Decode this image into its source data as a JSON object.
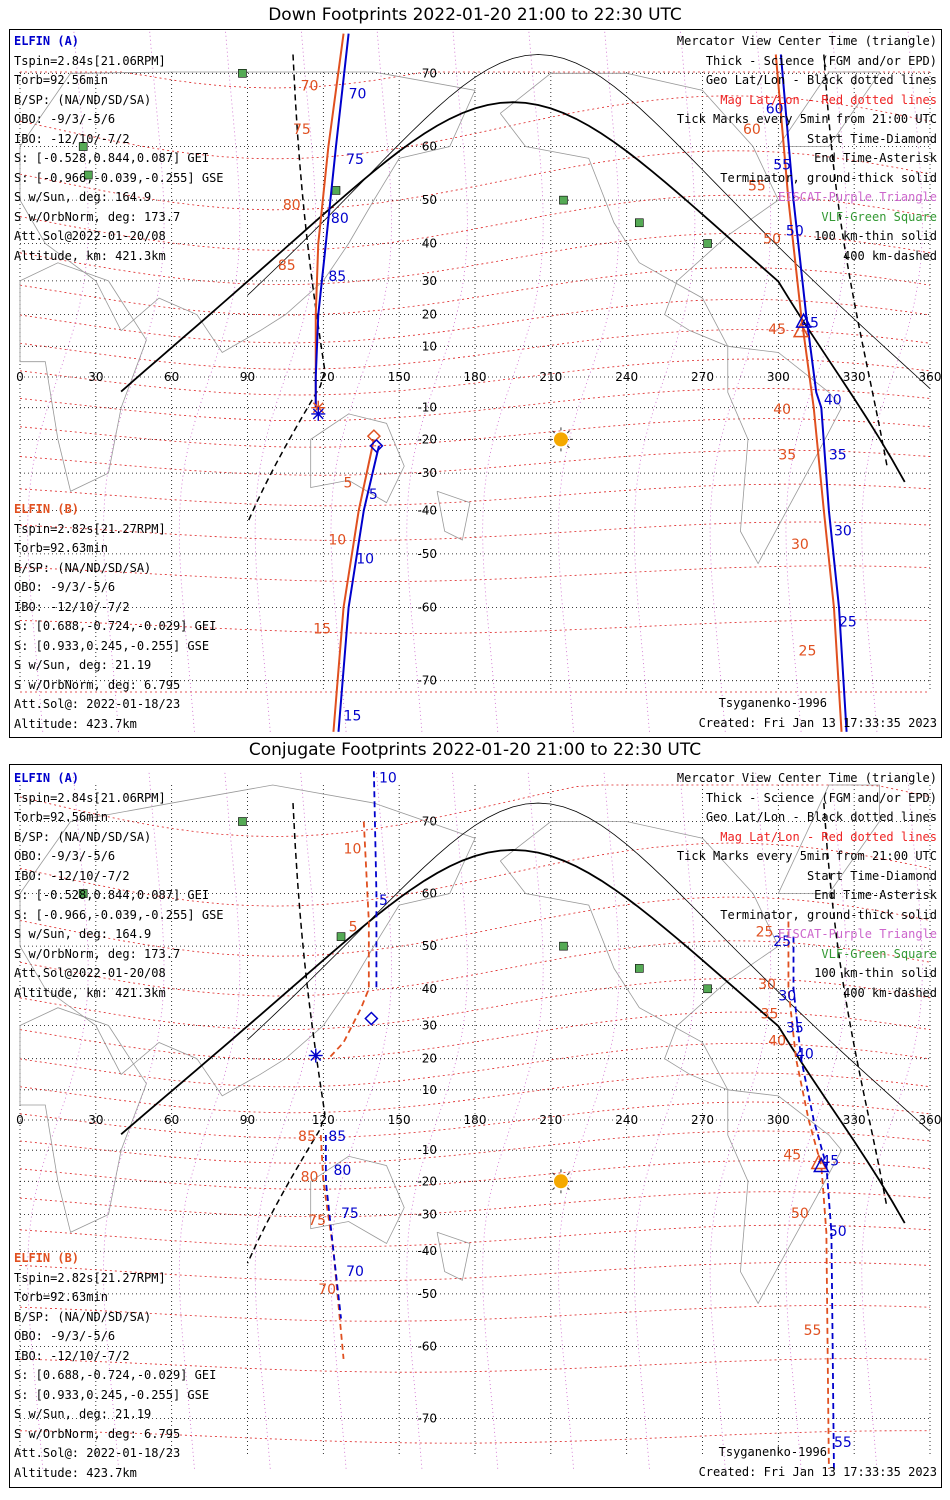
{
  "panels": [
    {
      "title": "Down Footprints 2022-01-20 21:00 to 22:30 UTC",
      "sat_a": {
        "name": "ELFIN (A)",
        "lines": [
          "Tspin=2.84s[21.06RPM]",
          "Torb=92.56min",
          "B/SP: (NA/ND/SD/SA)",
          "OBO: -9/3/-5/6",
          "IBO: -12/10/-7/2",
          "S: [-0.528,0.844,0.087] GEI",
          "S: [-0.966,-0.039,-0.255] GSE",
          "S w/Sun, deg: 164.9",
          "S w/OrbNorm, deg: 173.7",
          "Att.Sol@2022-01-20/08",
          "Altitude, km: 421.3km"
        ]
      },
      "sat_b": {
        "name": "ELFIN (B)",
        "lines": [
          "Tspin=2.82s[21.27RPM]",
          "Torb=92.63min",
          "B/SP: (NA/ND/SD/SA)",
          "OBO: -9/3/-5/6",
          "IBO: -12/10/-7/2",
          "S: [0.688,-0.724,-0.029] GEI",
          "S: [0.933,0.245,-0.255] GSE",
          "S w/Sun, deg: 21.19",
          "S w/OrbNorm, deg: 6.795",
          "Att.Sol@: 2022-01-18/23",
          "Altitude: 423.7km"
        ]
      },
      "labels": {
        "a_track_top": [
          "70",
          "75",
          "80",
          "85"
        ],
        "b_track_top": [
          "70",
          "75",
          "80",
          "85"
        ],
        "a_track_b": [
          "5",
          "10",
          "15"
        ],
        "b_track_b": [
          "5",
          "10",
          "15"
        ],
        "a_right": [
          "60",
          "55",
          "50",
          "45",
          "40",
          "35",
          "30",
          "25"
        ],
        "b_right": [
          "60",
          "55",
          "50",
          "45",
          "40",
          "35",
          "30",
          "25"
        ]
      },
      "footer_left": "Tsyganenko-1996",
      "footer_right": "Created: Fri Jan 13 17:33:35 2023"
    },
    {
      "title": "Conjugate Footprints 2022-01-20 21:00 to 22:30 UTC",
      "sat_a": {
        "name": "ELFIN (A)",
        "lines": [
          "Tspin=2.84s[21.06RPM]",
          "Torb=92.56min",
          "B/SP: (NA/ND/SD/SA)",
          "OBO: -9/3/-5/6",
          "IBO: -12/10/-7/2",
          "S: [-0.528,0.844,0.087] GEI",
          "S: [-0.966,-0.039,-0.255] GSE",
          "S w/Sun, deg: 164.9",
          "S w/OrbNorm, deg: 173.7",
          "Att.Sol@2022-01-20/08",
          "Altitude, km: 421.3km"
        ]
      },
      "sat_b": {
        "name": "ELFIN (B)",
        "lines": [
          "Tspin=2.82s[21.27RPM]",
          "Torb=92.63min",
          "B/SP: (NA/ND/SD/SA)",
          "OBO: -9/3/-5/6",
          "IBO: -12/10/-7/2",
          "S: [0.688,-0.724,-0.029] GEI",
          "S: [0.933,0.245,-0.255] GSE",
          "S w/Sun, deg: 21.19",
          "S w/OrbNorm, deg: 6.795",
          "Att.Sol@: 2022-01-18/23",
          "Altitude: 423.7km"
        ]
      },
      "labels": {
        "a_left": [
          "10",
          "5",
          "85",
          "80",
          "75",
          "70"
        ],
        "b_left": [
          "10",
          "5",
          "85",
          "80",
          "75",
          "70"
        ],
        "a_right": [
          "25",
          "30",
          "35",
          "40",
          "45",
          "50",
          "55"
        ],
        "b_right": [
          "25",
          "30",
          "35",
          "40",
          "45",
          "50",
          "55"
        ]
      },
      "footer_left": "Tsyganenko-1996",
      "footer_right": "Created: Fri Jan 13 17:33:35 2023"
    }
  ],
  "legend": [
    "Mercator View Center Time (triangle)",
    "Thick - Science (FGM and/or EPD)",
    "Geo Lat/Lon - Black dotted lines",
    "Mag Lat/Lon - Red dotted lines",
    "Tick Marks every 5min from 21:00 UTC",
    "Start Time-Diamond",
    "End Time-Asterisk",
    "Terminator, ground-thick solid",
    "EISCAT-Purple Triangle",
    "VLF-Green Square",
    "100 km-thin solid",
    "400 km-dashed"
  ],
  "lon_ticks": [
    "0",
    "30",
    "60",
    "90",
    "120",
    "150",
    "180",
    "210",
    "240",
    "270",
    "300",
    "330",
    "360"
  ],
  "lat_ticks": [
    "70",
    "60",
    "50",
    "40",
    "30",
    "20",
    "10",
    "-10",
    "-20",
    "-30",
    "-40",
    "-50",
    "-60",
    "-70"
  ],
  "colors": {
    "sat_a": "#0000cc",
    "sat_b": "#e05020",
    "mag_grid": "#dd2222",
    "geo_grid": "#000000",
    "eiscat": "#cc66cc",
    "vlf": "#339933",
    "sun": "#f5a800"
  }
}
